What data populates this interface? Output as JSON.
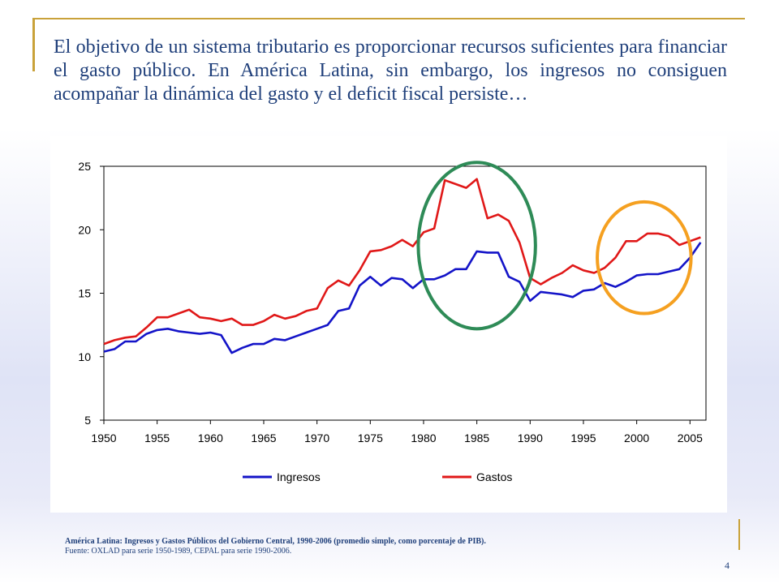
{
  "headline": "El objetivo de un sistema tributario es proporcionar recursos suficientes para financiar el gasto público. En América Latina, sin embargo, los ingresos no consiguen acompañar la dinámica del gasto y el deficit fiscal persiste…",
  "caption": {
    "title": "América Latina: Ingresos y Gastos Públicos del Gobierno Central, 1990-2006 (promedio simple, como porcentaje de PIB).",
    "source": "Fuente: OXLAD para serie 1950-1989, CEPAL para serie 1990-2006."
  },
  "page_number": "4",
  "colors": {
    "ingresos": "#1414c8",
    "gastos": "#e01818",
    "highlight_green": "#2e8b57",
    "highlight_orange": "#f5a020",
    "text": "#1f3f7a"
  },
  "chart_data": {
    "type": "line",
    "title": "",
    "xlabel": "",
    "ylabel": "",
    "xlim": [
      1950,
      2006.5
    ],
    "ylim": [
      5,
      25
    ],
    "xticks": [
      1950,
      1955,
      1960,
      1965,
      1970,
      1975,
      1980,
      1985,
      1990,
      1995,
      2000,
      2005
    ],
    "xtick_labels": [
      "1950",
      "1955",
      "1960",
      "1965",
      "1970",
      "1975",
      "1980",
      "1985",
      "1990",
      "1995",
      "2000",
      "2005"
    ],
    "yticks": [
      5,
      10,
      15,
      20,
      25
    ],
    "ytick_labels": [
      "5",
      "10",
      "15",
      "20",
      "25"
    ],
    "legend_position": "bottom",
    "x": [
      1950,
      1951,
      1952,
      1953,
      1954,
      1955,
      1956,
      1957,
      1958,
      1959,
      1960,
      1961,
      1962,
      1963,
      1964,
      1965,
      1966,
      1967,
      1968,
      1969,
      1970,
      1971,
      1972,
      1973,
      1974,
      1975,
      1976,
      1977,
      1978,
      1979,
      1980,
      1981,
      1982,
      1983,
      1984,
      1985,
      1986,
      1987,
      1988,
      1989,
      1990,
      1991,
      1992,
      1993,
      1994,
      1995,
      1996,
      1997,
      1998,
      1999,
      2000,
      2001,
      2002,
      2003,
      2004,
      2005,
      2006
    ],
    "series": [
      {
        "name": "Ingresos",
        "values": [
          10.4,
          10.6,
          11.2,
          11.2,
          11.8,
          12.1,
          12.2,
          12.0,
          11.9,
          11.8,
          11.9,
          11.7,
          10.3,
          10.7,
          11.0,
          11.0,
          11.4,
          11.3,
          11.6,
          11.9,
          12.2,
          12.5,
          13.6,
          13.8,
          15.6,
          16.3,
          15.6,
          16.2,
          16.1,
          15.4,
          16.1,
          16.1,
          16.4,
          16.9,
          16.9,
          18.3,
          18.2,
          18.2,
          16.3,
          15.9,
          14.4,
          15.1,
          15.0,
          14.9,
          14.7,
          15.2,
          15.3,
          15.8,
          15.5,
          15.9,
          16.4,
          16.5,
          16.5,
          16.7,
          16.9,
          17.8,
          19.0
        ]
      },
      {
        "name": "Gastos",
        "values": [
          11.0,
          11.3,
          11.5,
          11.6,
          12.3,
          13.1,
          13.1,
          13.4,
          13.7,
          13.1,
          13.0,
          12.8,
          13.0,
          12.5,
          12.5,
          12.8,
          13.3,
          13.0,
          13.2,
          13.6,
          13.8,
          15.4,
          16.0,
          15.6,
          16.8,
          18.3,
          18.4,
          18.7,
          19.2,
          18.7,
          19.8,
          20.1,
          23.9,
          23.6,
          23.3,
          24.0,
          20.9,
          21.2,
          20.7,
          19.0,
          16.2,
          15.7,
          16.2,
          16.6,
          17.2,
          16.8,
          16.6,
          17.0,
          17.8,
          19.1,
          19.1,
          19.7,
          19.7,
          19.5,
          18.8,
          19.1,
          19.4
        ]
      }
    ],
    "highlights": [
      {
        "name": "green-circle",
        "x_range": [
          1979.5,
          1990.5
        ],
        "y_range": [
          12.2,
          25.3
        ]
      },
      {
        "name": "orange-circle",
        "x_range": [
          1996.3,
          2005.1
        ],
        "y_range": [
          13.4,
          22.2
        ]
      }
    ]
  }
}
